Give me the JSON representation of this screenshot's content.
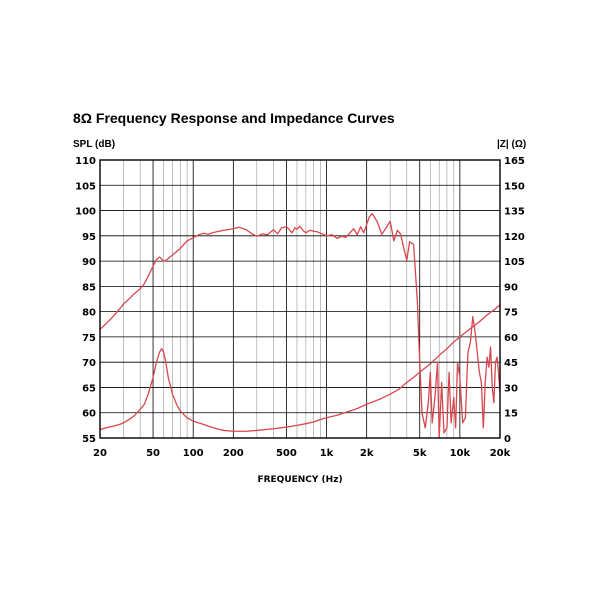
{
  "chart_data": {
    "type": "line",
    "title": "8Ω Frequency Response and Impedance Curves",
    "xlabel": "FREQUENCY (Hz)",
    "ylabel_left": "SPL (dB)",
    "ylabel_right": "|Z| (Ω)",
    "x_scale": "log",
    "xlim": [
      20,
      20000
    ],
    "ylim_left": [
      55,
      110
    ],
    "ylim_right": [
      0,
      165
    ],
    "grid": true,
    "x_tick_values": [
      20,
      50,
      100,
      200,
      500,
      1000,
      2000,
      5000,
      10000,
      20000
    ],
    "x_tick_labels": [
      "20",
      "50",
      "100",
      "200",
      "500",
      "1k",
      "2k",
      "5k",
      "10k",
      "20k"
    ],
    "y_left_ticks": [
      "110",
      "105",
      "100",
      "95",
      "90",
      "85",
      "80",
      "75",
      "70",
      "65",
      "60",
      "55"
    ],
    "y_right_ticks": [
      "165",
      "150",
      "135",
      "120",
      "105",
      "90",
      "75",
      "60",
      "45",
      "30",
      "15",
      "0"
    ],
    "color": "#d8474e",
    "series": [
      {
        "axis": "left",
        "x": [
          20,
          22,
          25,
          28,
          30,
          33,
          36,
          40,
          43,
          46,
          50,
          53,
          56,
          60,
          63,
          70,
          80,
          90,
          100,
          110,
          120,
          130,
          140,
          150,
          170,
          200,
          220,
          250,
          280,
          300,
          330,
          360,
          400,
          430,
          460,
          500,
          520,
          550,
          580,
          600,
          630,
          670,
          700,
          750,
          800,
          850,
          900,
          950,
          1000,
          1100,
          1200,
          1300,
          1400,
          1500,
          1600,
          1700,
          1800,
          1900,
          2000,
          2100,
          2200,
          2300,
          2400,
          2600,
          2800,
          3000,
          3200,
          3400,
          3600,
          3800,
          4000,
          4200,
          4500,
          4800,
          5000,
          5200,
          5500,
          5800,
          6000,
          6200,
          6500,
          6800,
          7000,
          7300,
          7600,
          8000,
          8300,
          8600,
          9000,
          9300,
          9600,
          10000,
          10500,
          11000,
          11500,
          12000,
          12500,
          13000,
          13500,
          14000,
          14500,
          15000,
          15500,
          16000,
          16500,
          17000,
          17500,
          18000,
          18500,
          19000,
          19500,
          20000
        ],
        "y": [
          76.5,
          77.5,
          79,
          80.5,
          81.5,
          82.5,
          83.5,
          84.5,
          85.5,
          87,
          89,
          90.3,
          90.8,
          90,
          90.2,
          91.2,
          92.5,
          94,
          94.6,
          95.2,
          95.5,
          95.3,
          95.6,
          95.8,
          96.1,
          96.4,
          96.7,
          96.2,
          95.3,
          94.9,
          95.4,
          95.2,
          96.2,
          95.4,
          96.6,
          96.8,
          96.4,
          95.6,
          96.6,
          96.3,
          96.9,
          96,
          95.6,
          96.1,
          95.9,
          95.8,
          95.5,
          95.3,
          95,
          95.2,
          94.5,
          94.9,
          94.7,
          95.6,
          96.4,
          95.2,
          96.8,
          95.6,
          97.2,
          98.8,
          99.4,
          98.6,
          97.8,
          95.3,
          96.6,
          97.9,
          94,
          96.1,
          95.3,
          92.5,
          90.2,
          93.8,
          93.3,
          82,
          70,
          60,
          57,
          62,
          68,
          58,
          63,
          70,
          55,
          66,
          56,
          57,
          68,
          58,
          63,
          57,
          70,
          67,
          58,
          59,
          72,
          74,
          79,
          76,
          72,
          68,
          66,
          57,
          66,
          71,
          69,
          73,
          65,
          62,
          70,
          71,
          68,
          64
        ],
        "name": ""
      },
      {
        "axis": "right",
        "x": [
          20,
          22,
          25,
          28,
          30,
          33,
          36,
          40,
          43,
          46,
          50,
          53,
          56,
          58,
          60,
          62,
          65,
          70,
          75,
          80,
          90,
          100,
          110,
          120,
          130,
          150,
          170,
          200,
          250,
          300,
          400,
          500,
          600,
          700,
          800,
          900,
          1000,
          1200,
          1500,
          1700,
          2000,
          2500,
          3000,
          3500,
          4000,
          4500,
          5000,
          6000,
          7000,
          8000,
          9000,
          10000,
          12000,
          14000,
          16000,
          18000,
          20000
        ],
        "y": [
          5,
          6,
          7,
          8,
          9,
          11,
          13,
          17,
          20,
          26,
          36,
          45,
          51,
          53,
          51,
          46,
          36,
          26,
          20,
          16,
          12,
          10,
          9,
          8,
          7,
          5.5,
          4.5,
          4,
          4,
          4.5,
          5.5,
          6.5,
          7.5,
          8.5,
          9.5,
          11,
          12,
          13.5,
          16,
          17.5,
          20,
          23,
          26,
          29,
          33,
          36,
          39,
          44,
          49,
          53,
          57,
          60,
          65,
          69,
          73,
          76,
          79
        ],
        "name": ""
      }
    ]
  }
}
